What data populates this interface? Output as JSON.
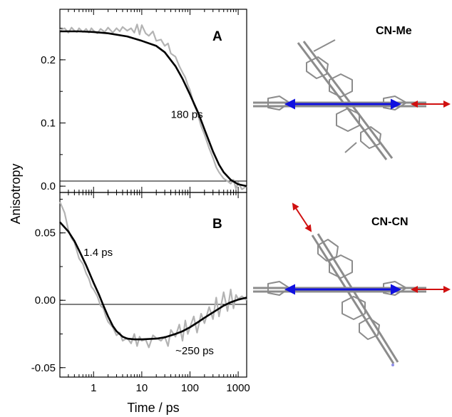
{
  "figure": {
    "ylabel": "Anisotropy",
    "xlabel": "Time / ps"
  },
  "molecules": {
    "top_label": "CN-Me",
    "bottom_label": "CN-CN",
    "colors": {
      "dipole": "#1010e0",
      "cn_bond": "#d01010",
      "skeleton": "#8c8c8c",
      "nitrogen": "#8f8fe8"
    }
  },
  "chart_data": [
    {
      "type": "line",
      "panel": "A",
      "xscale": "log",
      "xlim": [
        0.2,
        1500
      ],
      "ylim": [
        -0.01,
        0.28
      ],
      "yticks": [
        0.0,
        0.1,
        0.2
      ],
      "ytick_labels": [
        "0.0",
        "0.1",
        "0.2"
      ],
      "xticks": [
        1,
        10,
        100,
        1000
      ],
      "xtick_labels": [],
      "zero_line": true,
      "annotations": [
        {
          "text": "180 ps",
          "x": 40,
          "y": 0.108
        }
      ],
      "series": [
        {
          "role": "data",
          "color": "#b3b3b3",
          "x": [
            0.2,
            0.25,
            0.3,
            0.35,
            0.4,
            0.45,
            0.5,
            0.6,
            0.7,
            0.8,
            0.9,
            1.0,
            1.2,
            1.4,
            1.7,
            2.0,
            2.5,
            3.0,
            3.5,
            4.0,
            5.0,
            6.0,
            7.0,
            8.0,
            9.0,
            10,
            12,
            14,
            17,
            20,
            25,
            30,
            35,
            40,
            50,
            60,
            70,
            80,
            90,
            100,
            120,
            140,
            170,
            200,
            250,
            300,
            350,
            400,
            500,
            600,
            700,
            800,
            900,
            1000,
            1200,
            1500
          ],
          "y": [
            0.247,
            0.25,
            0.243,
            0.251,
            0.246,
            0.244,
            0.25,
            0.244,
            0.249,
            0.243,
            0.25,
            0.246,
            0.242,
            0.249,
            0.244,
            0.251,
            0.243,
            0.25,
            0.245,
            0.252,
            0.246,
            0.25,
            0.243,
            0.256,
            0.24,
            0.255,
            0.242,
            0.238,
            0.245,
            0.23,
            0.232,
            0.222,
            0.226,
            0.21,
            0.205,
            0.19,
            0.18,
            0.172,
            0.16,
            0.152,
            0.13,
            0.118,
            0.095,
            0.082,
            0.06,
            0.045,
            0.03,
            0.022,
            0.012,
            0.008,
            0.004,
            0.01,
            -0.004,
            0.006,
            -0.005,
            0.0
          ]
        },
        {
          "role": "fit",
          "color": "#000000",
          "x": [
            0.2,
            0.5,
            1,
            2,
            5,
            10,
            20,
            30,
            50,
            70,
            100,
            150,
            200,
            300,
            400,
            500,
            700,
            1000,
            1500
          ],
          "y": [
            0.245,
            0.245,
            0.244,
            0.242,
            0.237,
            0.23,
            0.222,
            0.212,
            0.19,
            0.17,
            0.145,
            0.115,
            0.09,
            0.055,
            0.034,
            0.022,
            0.01,
            0.003,
            0.0
          ]
        }
      ]
    },
    {
      "type": "line",
      "panel": "B",
      "xscale": "log",
      "xlim": [
        0.2,
        1500
      ],
      "ylim": [
        -0.057,
        0.08
      ],
      "yticks": [
        -0.05,
        0.0,
        0.05
      ],
      "ytick_labels": [
        "-0.05",
        "0.00",
        "0.05"
      ],
      "xticks": [
        1,
        10,
        100,
        1000
      ],
      "xtick_labels": [
        "1",
        "10",
        "100",
        "1000"
      ],
      "zero_line": true,
      "annotations": [
        {
          "text": "1.4 ps",
          "x": 0.62,
          "y": 0.033
        },
        {
          "text": "~250 ps",
          "x": 50,
          "y": -0.04
        }
      ],
      "series": [
        {
          "role": "data",
          "color": "#b3b3b3",
          "x": [
            0.2,
            0.25,
            0.3,
            0.35,
            0.4,
            0.5,
            0.6,
            0.7,
            0.8,
            0.9,
            1.0,
            1.2,
            1.4,
            1.6,
            1.8,
            2.0,
            2.5,
            3.0,
            3.5,
            4.0,
            5.0,
            6.0,
            7.0,
            8.0,
            9.0,
            10,
            12,
            14,
            17,
            20,
            25,
            30,
            35,
            40,
            50,
            60,
            70,
            80,
            90,
            100,
            120,
            140,
            170,
            200,
            250,
            300,
            350,
            400,
            500,
            600,
            700,
            800,
            900,
            1000,
            1200,
            1500
          ],
          "y": [
            0.073,
            0.065,
            0.052,
            0.046,
            0.043,
            0.031,
            0.027,
            0.02,
            0.016,
            0.01,
            0.008,
            0.003,
            -0.004,
            -0.006,
            -0.012,
            -0.016,
            -0.02,
            -0.026,
            -0.024,
            -0.03,
            -0.028,
            -0.032,
            -0.025,
            -0.034,
            -0.027,
            -0.03,
            -0.029,
            -0.035,
            -0.026,
            -0.028,
            -0.03,
            -0.027,
            -0.034,
            -0.022,
            -0.027,
            -0.018,
            -0.03,
            -0.015,
            -0.025,
            -0.02,
            -0.012,
            -0.024,
            -0.01,
            -0.017,
            -0.005,
            -0.014,
            0.002,
            -0.012,
            0.006,
            -0.008,
            0.008,
            -0.006,
            0.004,
            0.001,
            0.003,
            0.0
          ]
        },
        {
          "role": "fit",
          "color": "#000000",
          "x": [
            0.2,
            0.3,
            0.4,
            0.5,
            0.7,
            1.0,
            1.3,
            1.6,
            2.0,
            2.5,
            3.0,
            4.0,
            5.0,
            7.0,
            10,
            20,
            30,
            50,
            70,
            100,
            150,
            200,
            300,
            500,
            700,
            1000,
            1500
          ],
          "y": [
            0.058,
            0.051,
            0.044,
            0.037,
            0.026,
            0.013,
            0.004,
            -0.004,
            -0.012,
            -0.019,
            -0.023,
            -0.027,
            -0.0285,
            -0.029,
            -0.029,
            -0.0285,
            -0.0275,
            -0.025,
            -0.023,
            -0.02,
            -0.016,
            -0.013,
            -0.009,
            -0.004,
            -0.0015,
            0.0005,
            0.002
          ]
        }
      ]
    }
  ]
}
